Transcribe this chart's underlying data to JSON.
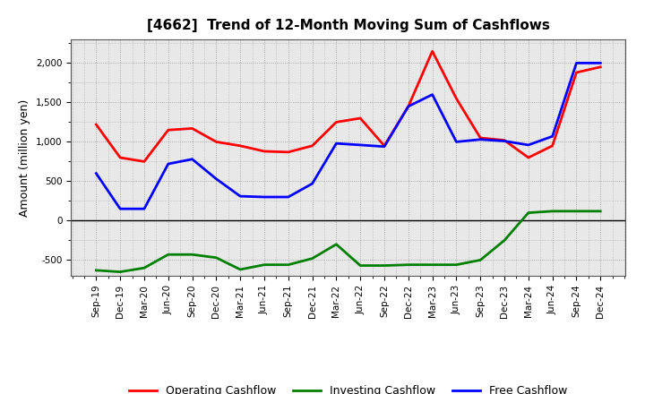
{
  "title": "[4662]  Trend of 12-Month Moving Sum of Cashflows",
  "ylabel": "Amount (million yen)",
  "x_labels": [
    "Sep-19",
    "Dec-19",
    "Mar-20",
    "Jun-20",
    "Sep-20",
    "Dec-20",
    "Mar-21",
    "Jun-21",
    "Sep-21",
    "Dec-21",
    "Mar-22",
    "Jun-22",
    "Sep-22",
    "Dec-22",
    "Mar-23",
    "Jun-23",
    "Sep-23",
    "Dec-23",
    "Mar-24",
    "Jun-24",
    "Sep-24",
    "Dec-24"
  ],
  "operating": [
    1220,
    800,
    750,
    1150,
    1170,
    1000,
    950,
    880,
    870,
    950,
    1250,
    1300,
    950,
    1450,
    2150,
    1550,
    1050,
    1020,
    800,
    950,
    1880,
    1950
  ],
  "investing": [
    -630,
    -650,
    -600,
    -430,
    -430,
    -470,
    -620,
    -560,
    -560,
    -480,
    -300,
    -570,
    -570,
    -560,
    -560,
    -560,
    -500,
    -250,
    100,
    120,
    120,
    120
  ],
  "free": [
    600,
    150,
    150,
    720,
    780,
    530,
    310,
    300,
    300,
    470,
    980,
    960,
    940,
    1450,
    1600,
    1000,
    1030,
    1010,
    960,
    1070,
    2000,
    2000
  ],
  "operating_color": "#ff0000",
  "investing_color": "#008000",
  "free_color": "#0000ff",
  "ylim": [
    -700,
    2300
  ],
  "yticks": [
    -500,
    0,
    500,
    1000,
    1500,
    2000
  ],
  "plot_bg_color": "#e8e8e8",
  "background_color": "#ffffff",
  "grid_color": "#999999",
  "linewidth": 2.0,
  "title_fontsize": 11,
  "tick_fontsize": 7.5,
  "ylabel_fontsize": 9
}
